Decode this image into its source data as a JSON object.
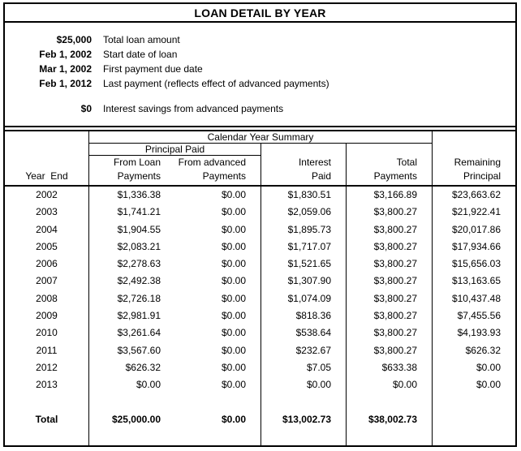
{
  "colors": {
    "background": "#ffffff",
    "text": "#000000",
    "border": "#000000"
  },
  "title": "LOAN DETAIL BY YEAR",
  "summary": {
    "rows": [
      {
        "value": "$25,000",
        "label": "Total loan amount"
      },
      {
        "value": "Feb 1, 2002",
        "label": "Start date of loan"
      },
      {
        "value": "Mar 1, 2002",
        "label": "First payment due date"
      },
      {
        "value": "Feb 1, 2012",
        "label": "Last payment (reflects effect of advanced payments)"
      },
      {
        "value": "$0",
        "label": "Interest savings from advanced payments"
      }
    ]
  },
  "table": {
    "group_header": "Calendar Year Summary",
    "principal_group_header": "Principal Paid",
    "columns": [
      {
        "line1": "",
        "line2": "Year  End"
      },
      {
        "line1": "From Loan",
        "line2": "Payments"
      },
      {
        "line1": "From advanced",
        "line2": "Payments"
      },
      {
        "line1": "Interest",
        "line2": "Paid"
      },
      {
        "line1": "Total",
        "line2": "Payments"
      },
      {
        "line1": "Remaining",
        "line2": "Principal"
      }
    ],
    "rows": [
      {
        "year": "2002",
        "from_loan": "$1,336.38",
        "from_advanced": "$0.00",
        "interest": "$1,830.51",
        "total_payments": "$3,166.89",
        "remaining": "$23,663.62"
      },
      {
        "year": "2003",
        "from_loan": "$1,741.21",
        "from_advanced": "$0.00",
        "interest": "$2,059.06",
        "total_payments": "$3,800.27",
        "remaining": "$21,922.41"
      },
      {
        "year": "2004",
        "from_loan": "$1,904.55",
        "from_advanced": "$0.00",
        "interest": "$1,895.73",
        "total_payments": "$3,800.27",
        "remaining": "$20,017.86"
      },
      {
        "year": "2005",
        "from_loan": "$2,083.21",
        "from_advanced": "$0.00",
        "interest": "$1,717.07",
        "total_payments": "$3,800.27",
        "remaining": "$17,934.66"
      },
      {
        "year": "2006",
        "from_loan": "$2,278.63",
        "from_advanced": "$0.00",
        "interest": "$1,521.65",
        "total_payments": "$3,800.27",
        "remaining": "$15,656.03"
      },
      {
        "year": "2007",
        "from_loan": "$2,492.38",
        "from_advanced": "$0.00",
        "interest": "$1,307.90",
        "total_payments": "$3,800.27",
        "remaining": "$13,163.65"
      },
      {
        "year": "2008",
        "from_loan": "$2,726.18",
        "from_advanced": "$0.00",
        "interest": "$1,074.09",
        "total_payments": "$3,800.27",
        "remaining": "$10,437.48"
      },
      {
        "year": "2009",
        "from_loan": "$2,981.91",
        "from_advanced": "$0.00",
        "interest": "$818.36",
        "total_payments": "$3,800.27",
        "remaining": "$7,455.56"
      },
      {
        "year": "2010",
        "from_loan": "$3,261.64",
        "from_advanced": "$0.00",
        "interest": "$538.64",
        "total_payments": "$3,800.27",
        "remaining": "$4,193.93"
      },
      {
        "year": "2011",
        "from_loan": "$3,567.60",
        "from_advanced": "$0.00",
        "interest": "$232.67",
        "total_payments": "$3,800.27",
        "remaining": "$626.32"
      },
      {
        "year": "2012",
        "from_loan": "$626.32",
        "from_advanced": "$0.00",
        "interest": "$7.05",
        "total_payments": "$633.38",
        "remaining": "$0.00"
      },
      {
        "year": "2013",
        "from_loan": "$0.00",
        "from_advanced": "$0.00",
        "interest": "$0.00",
        "total_payments": "$0.00",
        "remaining": "$0.00"
      }
    ],
    "total_row": {
      "label": "Total",
      "from_loan": "$25,000.00",
      "from_advanced": "$0.00",
      "interest": "$13,002.73",
      "total_payments": "$38,002.73",
      "remaining": ""
    }
  }
}
